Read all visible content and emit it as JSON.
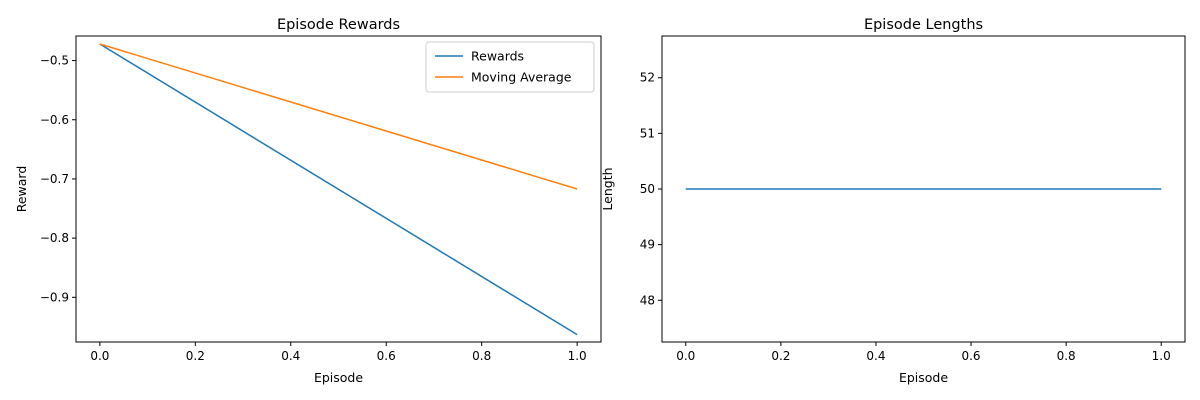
{
  "chart_data": [
    {
      "type": "line",
      "title": "Episode Rewards",
      "xlabel": "Episode",
      "ylabel": "Reward",
      "xlim": [
        -0.05,
        1.05
      ],
      "ylim": [
        -0.9755,
        -0.4585
      ],
      "xticks": [
        0.0,
        0.2,
        0.4,
        0.6,
        0.8,
        1.0
      ],
      "xtick_labels": [
        "0.0",
        "0.2",
        "0.4",
        "0.6",
        "0.8",
        "1.0"
      ],
      "yticks": [
        -0.5,
        -0.6,
        -0.7,
        -0.8,
        -0.9
      ],
      "ytick_labels": [
        "−0.5",
        "−0.6",
        "−0.7",
        "−0.8",
        "−0.9"
      ],
      "grid": false,
      "legend": "top-right",
      "series": [
        {
          "name": "Rewards",
          "color": "#1f77b4",
          "x": [
            0.0,
            1.0
          ],
          "y": [
            -0.472,
            -0.963
          ]
        },
        {
          "name": "Moving Average",
          "color": "#ff7f0e",
          "x": [
            0.0,
            1.0
          ],
          "y": [
            -0.472,
            -0.717
          ]
        }
      ]
    },
    {
      "type": "line",
      "title": "Episode Lengths",
      "xlabel": "Episode",
      "ylabel": "Length",
      "xlim": [
        -0.05,
        1.05
      ],
      "ylim": [
        47.25,
        52.75
      ],
      "xticks": [
        0.0,
        0.2,
        0.4,
        0.6,
        0.8,
        1.0
      ],
      "xtick_labels": [
        "0.0",
        "0.2",
        "0.4",
        "0.6",
        "0.8",
        "1.0"
      ],
      "yticks": [
        48,
        49,
        50,
        51,
        52
      ],
      "ytick_labels": [
        "48",
        "49",
        "50",
        "51",
        "52"
      ],
      "grid": false,
      "legend": "none",
      "series": [
        {
          "color": "#1f77b4",
          "x": [
            0.0,
            1.0
          ],
          "y": [
            50,
            50
          ]
        }
      ]
    }
  ]
}
